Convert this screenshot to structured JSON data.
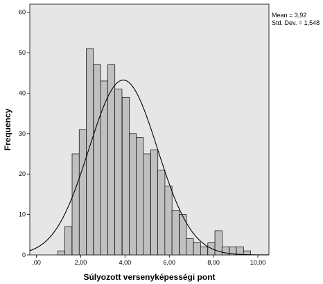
{
  "chart_data": {
    "type": "histogram",
    "title": "",
    "xlabel": "Súlyozott versenyképességi pont",
    "ylabel": "Frequency",
    "xlim": [
      -0.3,
      10.5
    ],
    "ylim": [
      0,
      62
    ],
    "x_ticks": [
      0,
      2,
      4,
      6,
      8,
      10
    ],
    "x_tick_labels": [
      ",00",
      "2,00",
      "4,00",
      "6,00",
      "8,00",
      "10,00"
    ],
    "y_ticks": [
      0,
      10,
      20,
      30,
      40,
      50,
      60
    ],
    "y_tick_labels": [
      "0",
      "10",
      "20",
      "30",
      "40",
      "50",
      "60"
    ],
    "bin_width": 0.3226,
    "bins": [
      {
        "start": 0.96,
        "count": 1
      },
      {
        "start": 1.28,
        "count": 7
      },
      {
        "start": 1.61,
        "count": 25
      },
      {
        "start": 1.93,
        "count": 31
      },
      {
        "start": 2.25,
        "count": 51
      },
      {
        "start": 2.58,
        "count": 47
      },
      {
        "start": 2.9,
        "count": 43
      },
      {
        "start": 3.22,
        "count": 47
      },
      {
        "start": 3.54,
        "count": 41
      },
      {
        "start": 3.87,
        "count": 39
      },
      {
        "start": 4.19,
        "count": 30
      },
      {
        "start": 4.51,
        "count": 29
      },
      {
        "start": 4.83,
        "count": 25
      },
      {
        "start": 5.16,
        "count": 26
      },
      {
        "start": 5.48,
        "count": 21
      },
      {
        "start": 5.8,
        "count": 17
      },
      {
        "start": 6.12,
        "count": 11
      },
      {
        "start": 6.45,
        "count": 10
      },
      {
        "start": 6.77,
        "count": 4
      },
      {
        "start": 7.09,
        "count": 3
      },
      {
        "start": 7.41,
        "count": 2
      },
      {
        "start": 7.74,
        "count": 3
      },
      {
        "start": 8.06,
        "count": 6
      },
      {
        "start": 8.38,
        "count": 2
      },
      {
        "start": 8.71,
        "count": 2
      },
      {
        "start": 9.03,
        "count": 2
      },
      {
        "start": 9.35,
        "count": 1
      }
    ],
    "normal_curve": {
      "mean": 3.92,
      "sd": 1.548,
      "n": 520
    },
    "stats": {
      "mean_label": "Mean = 3,92",
      "sd_label": "Std. Dev. = 1,548"
    },
    "bar_color": "#c0c0c0",
    "plot_background": "#e6e6e6",
    "grid": false
  }
}
